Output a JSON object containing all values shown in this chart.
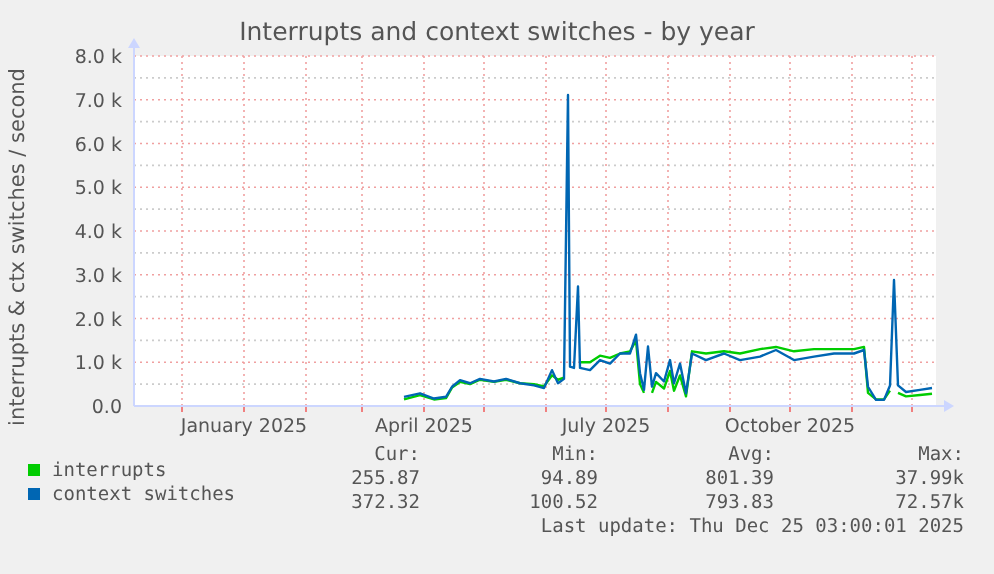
{
  "chart_data": {
    "type": "line",
    "title": "Interrupts and context switches - by year",
    "ylabel": "interrupts & ctx switches / second",
    "x": [
      "2025-03-22",
      "2025-03-30",
      "2025-04-06",
      "2025-04-12",
      "2025-04-15",
      "2025-04-19",
      "2025-04-24",
      "2025-04-29",
      "2025-05-06",
      "2025-05-12",
      "2025-05-19",
      "2025-05-26",
      "2025-05-31",
      "2025-06-04",
      "2025-06-07",
      "2025-06-10",
      "2025-06-12",
      "2025-06-13",
      "2025-06-15",
      "2025-06-17",
      "2025-06-18",
      "2025-06-23",
      "2025-06-28",
      "2025-07-03",
      "2025-07-08",
      "2025-07-13",
      "2025-07-16",
      "2025-07-18",
      "2025-07-20",
      "2025-07-22",
      "2025-07-24",
      "2025-07-26",
      "2025-07-30",
      "2025-08-02",
      "2025-08-04",
      "2025-08-07",
      "2025-08-10",
      "2025-08-13",
      "2025-08-20",
      "2025-08-29",
      "2025-09-06",
      "2025-09-16",
      "2025-09-24",
      "2025-10-03",
      "2025-10-13",
      "2025-10-23",
      "2025-11-02",
      "2025-11-07",
      "2025-11-09",
      "2025-11-13",
      "2025-11-17",
      "2025-11-20",
      "2025-11-22",
      "2025-11-24",
      "2025-11-28",
      "2025-12-05",
      "2025-12-11"
    ],
    "series": [
      {
        "name": "interrupts",
        "color": "#00cc00",
        "values": [
          150,
          250,
          150,
          180,
          420,
          550,
          500,
          600,
          550,
          600,
          520,
          500,
          450,
          700,
          600,
          650,
          null,
          null,
          null,
          null,
          1000,
          1000,
          1150,
          1100,
          1200,
          1250,
          1500,
          500,
          300,
          null,
          300,
          550,
          400,
          800,
          350,
          700,
          220,
          1250,
          1200,
          1250,
          1200,
          1300,
          1350,
          1250,
          1300,
          1300,
          1300,
          1350,
          300,
          150,
          150,
          350,
          null,
          300,
          220,
          250,
          280
        ]
      },
      {
        "name": "context switches",
        "color": "#0066b3",
        "values": [
          210,
          290,
          170,
          210,
          440,
          590,
          520,
          620,
          560,
          620,
          520,
          470,
          410,
          820,
          520,
          620,
          7110,
          900,
          870,
          2730,
          870,
          820,
          1050,
          970,
          1200,
          1200,
          1630,
          750,
          370,
          1360,
          440,
          750,
          560,
          1050,
          520,
          970,
          290,
          1200,
          1050,
          1200,
          1050,
          1130,
          1280,
          1050,
          1130,
          1200,
          1200,
          1280,
          440,
          140,
          140,
          470,
          2880,
          470,
          320,
          370,
          410
        ]
      }
    ],
    "xlim": [
      "2024-11-07",
      "2025-12-13"
    ],
    "xticks": [
      {
        "value": "2024-12-01",
        "label": null
      },
      {
        "value": "2025-01-01",
        "label": "January 2025"
      },
      {
        "value": "2025-02-01",
        "label": null
      },
      {
        "value": "2025-03-01",
        "label": null
      },
      {
        "value": "2025-04-01",
        "label": "April 2025"
      },
      {
        "value": "2025-05-01",
        "label": null
      },
      {
        "value": "2025-06-01",
        "label": null
      },
      {
        "value": "2025-07-01",
        "label": "July 2025"
      },
      {
        "value": "2025-08-01",
        "label": null
      },
      {
        "value": "2025-09-01",
        "label": null
      },
      {
        "value": "2025-10-01",
        "label": "October 2025"
      },
      {
        "value": "2025-11-01",
        "label": null
      },
      {
        "value": "2025-12-01",
        "label": null
      }
    ],
    "ylim": [
      0,
      8000
    ],
    "yticks": [
      {
        "value": 0,
        "label": "0.0"
      },
      {
        "value": 500,
        "label": null
      },
      {
        "value": 1000,
        "label": "1.0 k"
      },
      {
        "value": 1500,
        "label": null
      },
      {
        "value": 2000,
        "label": "2.0 k"
      },
      {
        "value": 2500,
        "label": null
      },
      {
        "value": 3000,
        "label": "3.0 k"
      },
      {
        "value": 3500,
        "label": null
      },
      {
        "value": 4000,
        "label": "4.0 k"
      },
      {
        "value": 4500,
        "label": null
      },
      {
        "value": 5000,
        "label": "5.0 k"
      },
      {
        "value": 5500,
        "label": null
      },
      {
        "value": 6000,
        "label": "6.0 k"
      },
      {
        "value": 6500,
        "label": null
      },
      {
        "value": 7000,
        "label": "7.0 k"
      },
      {
        "value": 7500,
        "label": null
      },
      {
        "value": 8000,
        "label": "8.0 k"
      }
    ],
    "grid": true,
    "legend": "bottom",
    "marker": "none",
    "line_style": "solid",
    "annotations": [
      "Cur:",
      "Min:",
      "Avg:",
      "Max:",
      "255.87",
      "94.89",
      "801.39",
      "37.99k",
      "372.32",
      "100.52",
      "793.83",
      "72.57k",
      "Last update: Thu Dec 25 03:00:01 2025"
    ]
  }
}
